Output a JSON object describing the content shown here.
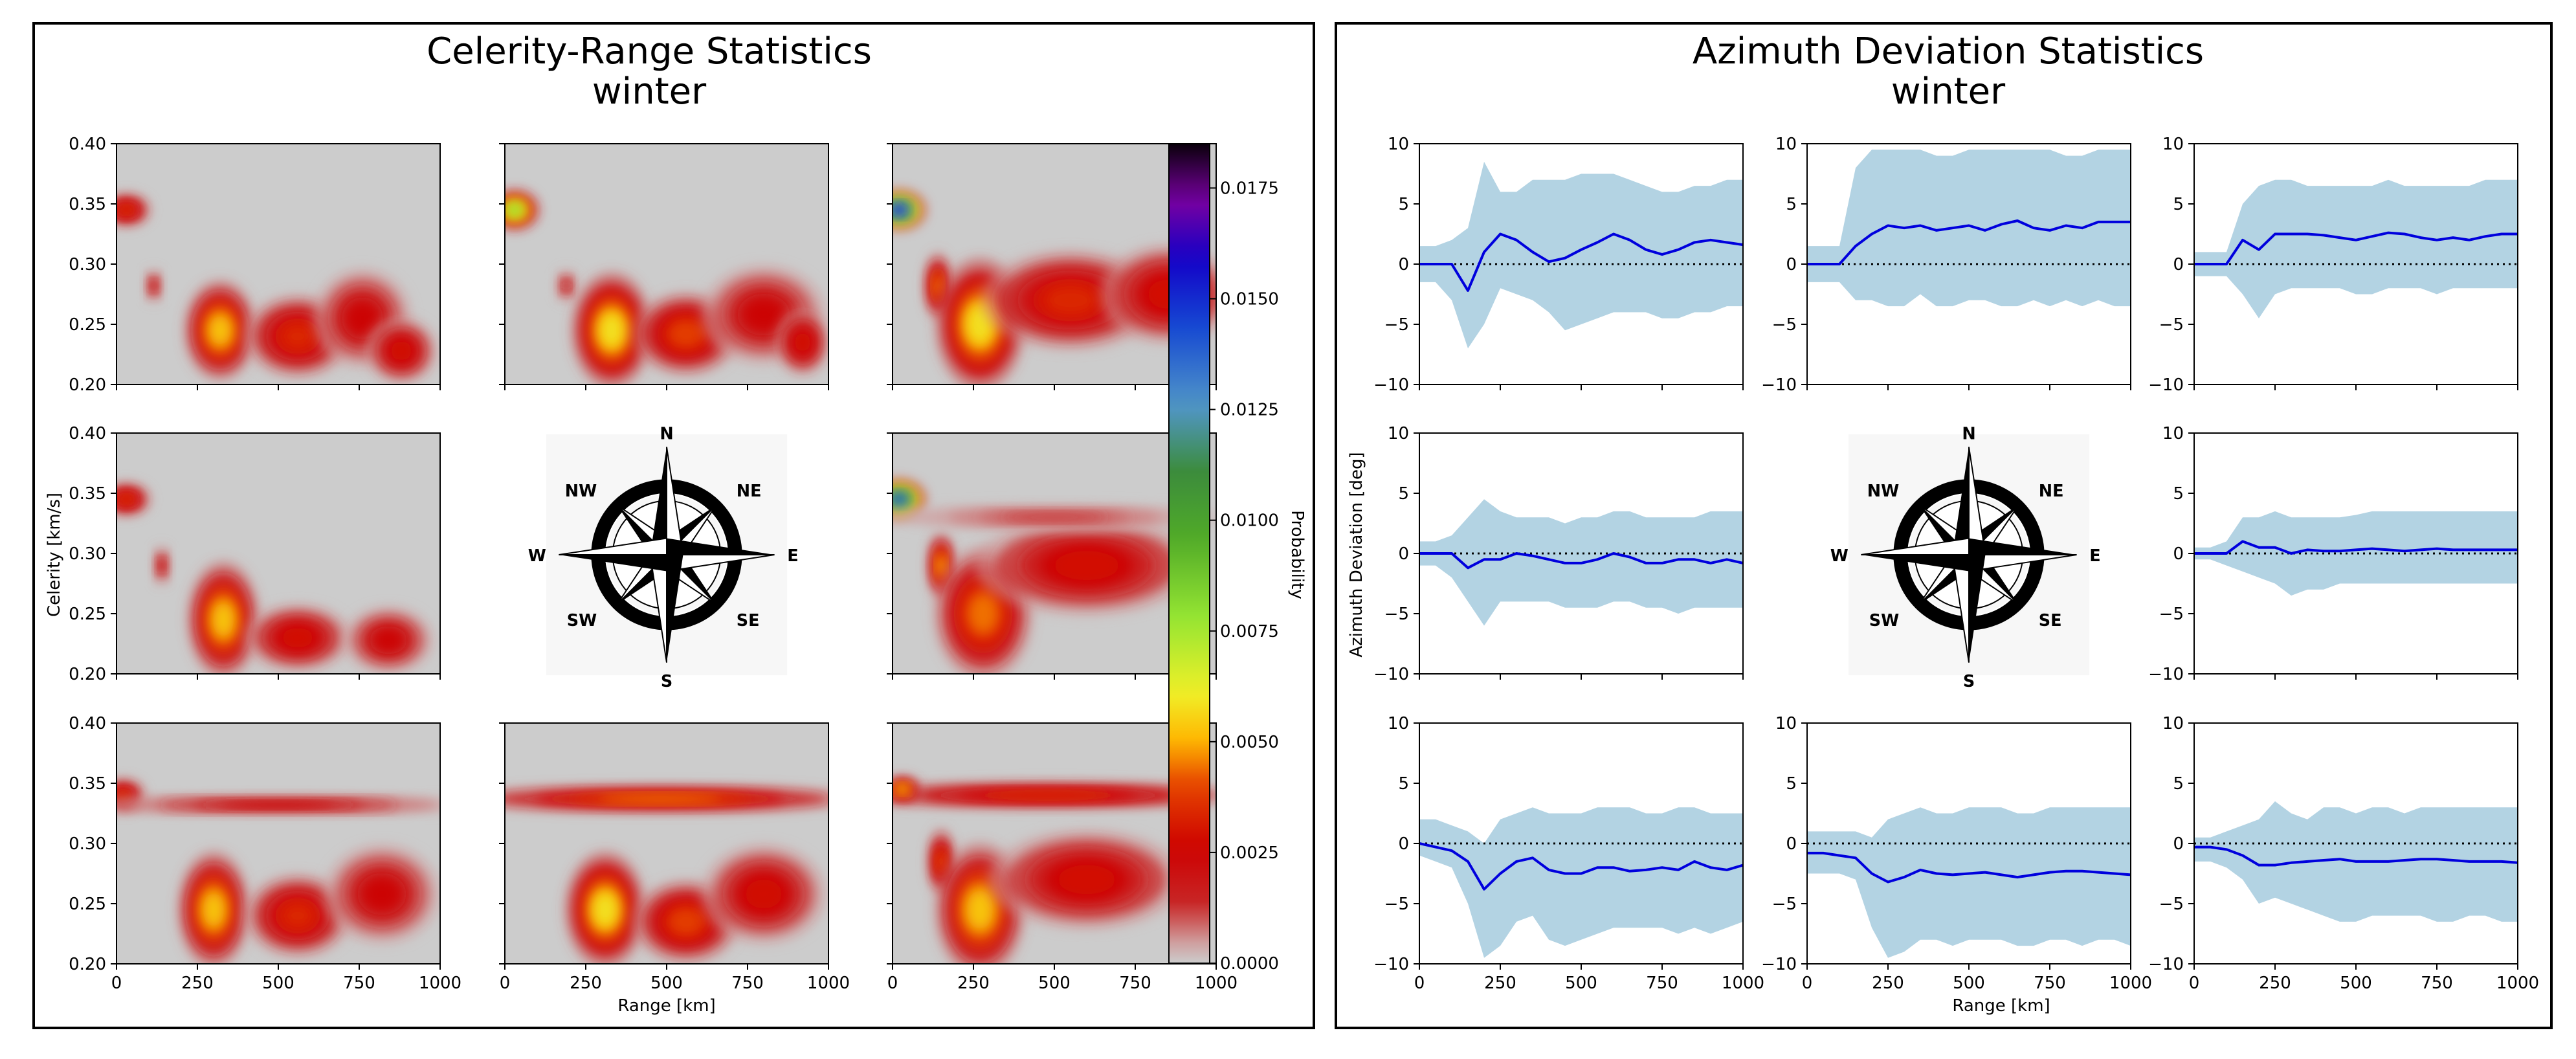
{
  "chart_data": [
    {
      "type": "heatmap",
      "title": "Celerity-Range Statistics",
      "subtitle": "winter",
      "xlabel": "Range [km]",
      "ylabel": "Celerity [km/s]",
      "xlim": [
        0,
        1000
      ],
      "ylim": [
        0.2,
        0.4
      ],
      "xticks": [
        "0",
        "250",
        "500",
        "750",
        "1000"
      ],
      "yticks": [
        "0.20",
        "0.25",
        "0.30",
        "0.35",
        "0.40"
      ],
      "grid": false,
      "colorbar": {
        "label": "Probability",
        "range": [
          0,
          0.0185
        ],
        "ticks": [
          "0.0000",
          "0.0025",
          "0.0050",
          "0.0075",
          "0.0100",
          "0.0125",
          "0.0150",
          "0.0175"
        ]
      },
      "panel_layout": [
        [
          "NW",
          "N",
          "NE"
        ],
        [
          "W",
          "compass",
          "E"
        ],
        [
          "SW",
          "S",
          "SE"
        ]
      ],
      "panels": {
        "NW": {
          "peak_prob": 0.006,
          "blobs": [
            {
              "range": 30,
              "celerity": 0.345,
              "prob": 0.0035,
              "dx": 55,
              "dy": 0.01
            },
            {
              "range": 115,
              "celerity": 0.282,
              "prob": 0.0018,
              "dx": 20,
              "dy": 0.01
            },
            {
              "range": 320,
              "celerity": 0.245,
              "prob": 0.0055,
              "dx": 80,
              "dy": 0.03
            },
            {
              "range": 560,
              "celerity": 0.24,
              "prob": 0.0035,
              "dx": 120,
              "dy": 0.025
            },
            {
              "range": 760,
              "celerity": 0.255,
              "prob": 0.0025,
              "dx": 110,
              "dy": 0.03
            },
            {
              "range": 880,
              "celerity": 0.228,
              "prob": 0.0028,
              "dx": 80,
              "dy": 0.02
            }
          ]
        },
        "N": {
          "peak_prob": 0.008,
          "blobs": [
            {
              "range": 30,
              "celerity": 0.345,
              "prob": 0.008,
              "dx": 55,
              "dy": 0.012
            },
            {
              "range": 190,
              "celerity": 0.282,
              "prob": 0.0015,
              "dx": 25,
              "dy": 0.01
            },
            {
              "range": 330,
              "celerity": 0.245,
              "prob": 0.006,
              "dx": 90,
              "dy": 0.035
            },
            {
              "range": 560,
              "celerity": 0.242,
              "prob": 0.004,
              "dx": 120,
              "dy": 0.025
            },
            {
              "range": 800,
              "celerity": 0.258,
              "prob": 0.0025,
              "dx": 140,
              "dy": 0.03
            },
            {
              "range": 920,
              "celerity": 0.235,
              "prob": 0.003,
              "dx": 60,
              "dy": 0.02
            }
          ]
        },
        "NE": {
          "peak_prob": 0.015,
          "blobs": [
            {
              "range": 20,
              "celerity": 0.345,
              "prob": 0.015,
              "dx": 60,
              "dy": 0.012
            },
            {
              "range": 140,
              "celerity": 0.282,
              "prob": 0.0045,
              "dx": 30,
              "dy": 0.02
            },
            {
              "range": 270,
              "celerity": 0.25,
              "prob": 0.006,
              "dx": 100,
              "dy": 0.04
            },
            {
              "range": 550,
              "celerity": 0.27,
              "prob": 0.0035,
              "dx": 200,
              "dy": 0.03
            },
            {
              "range": 850,
              "celerity": 0.275,
              "prob": 0.003,
              "dx": 150,
              "dy": 0.03
            }
          ]
        },
        "W": {
          "peak_prob": 0.006,
          "blobs": [
            {
              "range": 30,
              "celerity": 0.345,
              "prob": 0.0035,
              "dx": 55,
              "dy": 0.01
            },
            {
              "range": 140,
              "celerity": 0.29,
              "prob": 0.0018,
              "dx": 20,
              "dy": 0.012
            },
            {
              "range": 330,
              "celerity": 0.245,
              "prob": 0.0055,
              "dx": 80,
              "dy": 0.035
            },
            {
              "range": 560,
              "celerity": 0.23,
              "prob": 0.003,
              "dx": 120,
              "dy": 0.02
            },
            {
              "range": 840,
              "celerity": 0.228,
              "prob": 0.0025,
              "dx": 100,
              "dy": 0.02
            }
          ]
        },
        "E": {
          "peak_prob": 0.014,
          "blobs": [
            {
              "range": 20,
              "celerity": 0.345,
              "prob": 0.014,
              "dx": 60,
              "dy": 0.012
            },
            {
              "range": 150,
              "celerity": 0.29,
              "prob": 0.005,
              "dx": 30,
              "dy": 0.02
            },
            {
              "range": 280,
              "celerity": 0.25,
              "prob": 0.0045,
              "dx": 110,
              "dy": 0.04
            },
            {
              "range": 600,
              "celerity": 0.29,
              "prob": 0.003,
              "dx": 250,
              "dy": 0.03
            },
            {
              "range": 500,
              "celerity": 0.33,
              "prob": 0.0012,
              "dx": 400,
              "dy": 0.008
            }
          ]
        },
        "SW": {
          "peak_prob": 0.0055,
          "blobs": [
            {
              "range": 20,
              "celerity": 0.34,
              "prob": 0.0035,
              "dx": 50,
              "dy": 0.01
            },
            {
              "range": 500,
              "celerity": 0.332,
              "prob": 0.0022,
              "dx": 450,
              "dy": 0.006
            },
            {
              "range": 300,
              "celerity": 0.245,
              "prob": 0.0055,
              "dx": 80,
              "dy": 0.035
            },
            {
              "range": 560,
              "celerity": 0.24,
              "prob": 0.0035,
              "dx": 120,
              "dy": 0.025
            },
            {
              "range": 820,
              "celerity": 0.258,
              "prob": 0.0025,
              "dx": 130,
              "dy": 0.03
            }
          ]
        },
        "S": {
          "peak_prob": 0.006,
          "blobs": [
            {
              "range": 480,
              "celerity": 0.337,
              "prob": 0.0045,
              "dx": 470,
              "dy": 0.008
            },
            {
              "range": 310,
              "celerity": 0.245,
              "prob": 0.006,
              "dx": 90,
              "dy": 0.035
            },
            {
              "range": 560,
              "celerity": 0.235,
              "prob": 0.004,
              "dx": 120,
              "dy": 0.025
            },
            {
              "range": 800,
              "celerity": 0.258,
              "prob": 0.0028,
              "dx": 140,
              "dy": 0.03
            }
          ]
        },
        "SE": {
          "peak_prob": 0.0055,
          "blobs": [
            {
              "range": 480,
              "celerity": 0.34,
              "prob": 0.0035,
              "dx": 470,
              "dy": 0.008
            },
            {
              "range": 30,
              "celerity": 0.345,
              "prob": 0.0055,
              "dx": 40,
              "dy": 0.008
            },
            {
              "range": 150,
              "celerity": 0.285,
              "prob": 0.004,
              "dx": 30,
              "dy": 0.02
            },
            {
              "range": 270,
              "celerity": 0.245,
              "prob": 0.0055,
              "dx": 100,
              "dy": 0.04
            },
            {
              "range": 600,
              "celerity": 0.27,
              "prob": 0.003,
              "dx": 220,
              "dy": 0.03
            }
          ]
        }
      }
    },
    {
      "type": "line",
      "title": "Azimuth Deviation Statistics",
      "subtitle": "winter",
      "xlabel": "Range [km]",
      "ylabel": "Azimuth Deviation [deg]",
      "xlim": [
        0,
        1000
      ],
      "ylim": [
        -10,
        10
      ],
      "xticks": [
        "0",
        "250",
        "500",
        "750",
        "1000"
      ],
      "yticks": [
        "−10",
        "−5",
        "0",
        "5",
        "10"
      ],
      "reference_line": 0,
      "grid": false,
      "colors": {
        "mean": "#0000dd",
        "band": "#b3d3e3",
        "reference": "#000000"
      },
      "x": [
        0,
        50,
        100,
        150,
        200,
        250,
        300,
        350,
        400,
        450,
        500,
        550,
        600,
        650,
        700,
        750,
        800,
        850,
        900,
        950,
        1000
      ],
      "panel_layout": [
        [
          "NW",
          "N",
          "NE"
        ],
        [
          "W",
          "compass",
          "E"
        ],
        [
          "SW",
          "S",
          "SE"
        ]
      ],
      "panels": {
        "NW": {
          "mean": [
            0,
            0,
            0,
            -2.2,
            1,
            2.5,
            2.0,
            1.0,
            0.2,
            0.5,
            1.2,
            1.8,
            2.5,
            2.0,
            1.2,
            0.8,
            1.2,
            1.8,
            2.0,
            1.8,
            1.6
          ],
          "upper": [
            1.5,
            1.5,
            2,
            3,
            8.5,
            6,
            6,
            7,
            7,
            7,
            7.5,
            7.5,
            7.5,
            7,
            6.5,
            6,
            6,
            6.5,
            6.5,
            7,
            7
          ],
          "lower": [
            -1.5,
            -1.5,
            -3,
            -7,
            -5,
            -2,
            -2.5,
            -3,
            -4,
            -5.5,
            -5,
            -4.5,
            -4,
            -4,
            -4,
            -4.5,
            -4.5,
            -4,
            -4,
            -3.5,
            -3.5
          ]
        },
        "N": {
          "mean": [
            0,
            0,
            0,
            1.5,
            2.5,
            3.2,
            3.0,
            3.2,
            2.8,
            3.0,
            3.2,
            2.8,
            3.3,
            3.6,
            3.0,
            2.8,
            3.2,
            3.0,
            3.5,
            3.5,
            3.5
          ],
          "upper": [
            1.5,
            1.5,
            1.5,
            8,
            9.5,
            9.5,
            9.5,
            9.5,
            9,
            9,
            9.5,
            9.5,
            9.5,
            9.5,
            9.5,
            9.5,
            9,
            9,
            9.5,
            9.5,
            9.5
          ],
          "lower": [
            -1.5,
            -1.5,
            -1.5,
            -3,
            -3,
            -3.5,
            -3.5,
            -2.5,
            -3.5,
            -3.5,
            -3,
            -3,
            -3.5,
            -3.5,
            -3,
            -3.5,
            -3,
            -3.5,
            -3,
            -3.5,
            -3.5
          ]
        },
        "NE": {
          "mean": [
            0,
            0,
            0,
            2.0,
            1.2,
            2.5,
            2.5,
            2.5,
            2.4,
            2.2,
            2.0,
            2.3,
            2.6,
            2.5,
            2.2,
            2.0,
            2.2,
            2.0,
            2.3,
            2.5,
            2.5
          ],
          "upper": [
            1,
            1,
            1,
            5,
            6.5,
            7,
            7,
            6.5,
            6.5,
            6.5,
            6.5,
            6.5,
            7,
            6.5,
            6.5,
            6.5,
            6.5,
            6.5,
            7,
            7,
            7
          ],
          "lower": [
            -1,
            -1,
            -1,
            -2.5,
            -4.5,
            -2.5,
            -2,
            -2,
            -2,
            -2,
            -2.5,
            -2.5,
            -2,
            -2,
            -2,
            -2.5,
            -2,
            -2,
            -2,
            -2,
            -2
          ]
        },
        "W": {
          "mean": [
            0,
            0,
            0,
            -1.2,
            -0.5,
            -0.5,
            0,
            -0.2,
            -0.5,
            -0.8,
            -0.8,
            -0.5,
            0,
            -0.3,
            -0.8,
            -0.8,
            -0.5,
            -0.5,
            -0.8,
            -0.5,
            -0.8
          ],
          "upper": [
            1,
            1,
            1.5,
            3,
            4.5,
            3.5,
            3,
            3,
            3,
            2.5,
            3,
            3,
            3.5,
            3.5,
            3,
            3,
            3,
            3,
            3.5,
            3.5,
            3.5
          ],
          "lower": [
            -1,
            -1,
            -2,
            -4,
            -6,
            -4,
            -4,
            -4,
            -4,
            -4.5,
            -4.5,
            -4.5,
            -4,
            -4,
            -4.5,
            -4.5,
            -5,
            -4.5,
            -4.5,
            -4.5,
            -4.5
          ]
        },
        "E": {
          "mean": [
            0,
            0,
            0,
            1.0,
            0.5,
            0.5,
            0,
            0.3,
            0.2,
            0.2,
            0.3,
            0.4,
            0.3,
            0.2,
            0.3,
            0.4,
            0.3,
            0.3,
            0.3,
            0.3,
            0.3
          ],
          "upper": [
            0.5,
            0.5,
            1,
            3,
            3,
            3.5,
            3,
            3,
            3,
            3,
            3.2,
            3.5,
            3.5,
            3.5,
            3.5,
            3.5,
            3.5,
            3.5,
            3.5,
            3.5,
            3.5
          ],
          "lower": [
            -0.5,
            -0.5,
            -1,
            -1.5,
            -2,
            -2.5,
            -3.5,
            -3,
            -3,
            -2.5,
            -2.5,
            -2.5,
            -2.5,
            -2.5,
            -2.5,
            -2.5,
            -2.5,
            -2.5,
            -2.5,
            -2.5,
            -2.5
          ]
        },
        "SW": {
          "mean": [
            0,
            -0.3,
            -0.6,
            -1.5,
            -3.8,
            -2.5,
            -1.5,
            -1.2,
            -2.2,
            -2.5,
            -2.5,
            -2.0,
            -2.0,
            -2.3,
            -2.2,
            -2.0,
            -2.2,
            -1.5,
            -2.0,
            -2.2,
            -1.8
          ],
          "upper": [
            2,
            2,
            1.5,
            1,
            0,
            2,
            2.5,
            3,
            2.5,
            2.5,
            2.5,
            3,
            3,
            3,
            2.5,
            2.5,
            3,
            3,
            2.5,
            2.5,
            2.5
          ],
          "lower": [
            -1,
            -1.5,
            -2,
            -5,
            -9.5,
            -8.5,
            -6.5,
            -6,
            -8,
            -8.5,
            -8,
            -7.5,
            -7,
            -7,
            -7,
            -7,
            -7.5,
            -7,
            -7.5,
            -7,
            -6.5
          ]
        },
        "S": {
          "mean": [
            -0.8,
            -0.8,
            -1.0,
            -1.2,
            -2.5,
            -3.2,
            -2.8,
            -2.2,
            -2.5,
            -2.6,
            -2.5,
            -2.4,
            -2.6,
            -2.8,
            -2.6,
            -2.4,
            -2.3,
            -2.3,
            -2.4,
            -2.5,
            -2.6
          ],
          "upper": [
            1,
            1,
            1,
            1,
            0.5,
            2,
            2.5,
            3,
            2.5,
            2.5,
            3,
            3,
            3,
            2.5,
            2.5,
            3,
            3,
            3,
            3,
            3,
            3
          ],
          "lower": [
            -2.5,
            -2.5,
            -2.5,
            -3,
            -7,
            -9.5,
            -9,
            -8,
            -8,
            -8.5,
            -8,
            -8,
            -8,
            -8.5,
            -8.5,
            -8,
            -8,
            -8.5,
            -8,
            -8,
            -8.5
          ]
        },
        "SE": {
          "mean": [
            -0.3,
            -0.3,
            -0.5,
            -1.0,
            -1.8,
            -1.8,
            -1.6,
            -1.5,
            -1.4,
            -1.3,
            -1.5,
            -1.5,
            -1.5,
            -1.4,
            -1.3,
            -1.3,
            -1.4,
            -1.5,
            -1.5,
            -1.5,
            -1.6
          ],
          "upper": [
            0.5,
            0.5,
            1,
            1.5,
            2,
            3.5,
            2.5,
            2,
            3,
            3,
            2.5,
            3,
            3,
            2.5,
            3,
            3,
            3,
            3,
            3,
            3,
            3
          ],
          "lower": [
            -1.5,
            -1.5,
            -2,
            -3,
            -5,
            -4.5,
            -5,
            -5.5,
            -6,
            -6.5,
            -6.5,
            -6,
            -6,
            -6,
            -6,
            -6.5,
            -6.5,
            -6,
            -6,
            -6.5,
            -6.5
          ]
        }
      }
    }
  ],
  "compass": {
    "N": "N",
    "NE": "NE",
    "E": "E",
    "SE": "SE",
    "S": "S",
    "SW": "SW",
    "W": "W",
    "NW": "NW"
  }
}
